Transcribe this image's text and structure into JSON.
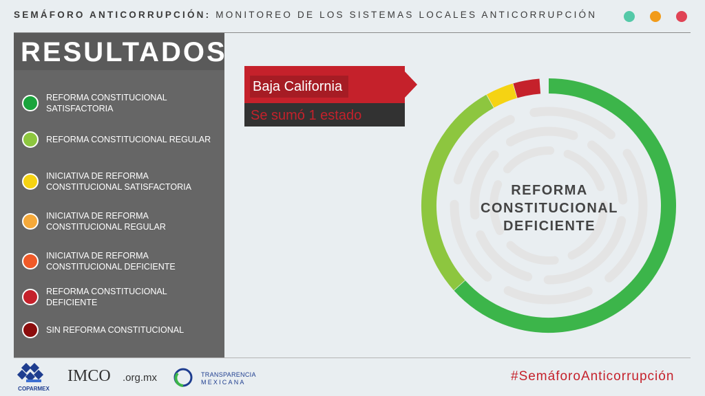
{
  "header": {
    "title_bold": "SEMÁFORO ANTICORRUPCIÓN:",
    "title_rest": "MONITOREO DE LOS SISTEMAS LOCALES ANTICORRUPCIÓN",
    "dot_colors": [
      "#54c9a8",
      "#f19b1a",
      "#e04355"
    ]
  },
  "panel": {
    "title": "RESULTADOS",
    "legend": [
      {
        "label": "REFORMA CONSTITUCIONAL SATISFACTORIA",
        "color": "#1aa43c"
      },
      {
        "label": "REFORMA CONSTITUCIONAL REGULAR",
        "color": "#8dc63f"
      },
      {
        "label": "INICIATIVA DE REFORMA CONSTITUCIONAL SATISFACTORIA",
        "color": "#f5d313"
      },
      {
        "label": "INICIATIVA DE REFORMA CONSTITUCIONAL REGULAR",
        "color": "#f5a93a"
      },
      {
        "label": "INICIATIVA DE REFORMA CONSTITUCIONAL DEFICIENTE",
        "color": "#f05a28"
      },
      {
        "label": "REFORMA CONSTITUCIONAL DEFICIENTE",
        "color": "#c5212b"
      },
      {
        "label": "SIN REFORMA CONSTITUCIONAL",
        "color": "#8b0d0d"
      }
    ]
  },
  "callout": {
    "state": "Baja California",
    "note": "Se sumó 1 estado"
  },
  "donut": {
    "center_label": [
      "REFORMA",
      "CONSTITUCIONAL",
      "DEFICIENTE"
    ],
    "segments": [
      {
        "category": "REFORMA CONSTITUCIONAL SATISFACTORIA",
        "fraction": 0.634,
        "color": "#3cb54a"
      },
      {
        "category": "REFORMA CONSTITUCIONAL REGULAR",
        "fraction": 0.285,
        "color": "#8dc63f"
      },
      {
        "category": "INICIATIVA DE REFORMA CONSTITUCIONAL SATISFACTORIA",
        "fraction": 0.036,
        "color": "#f5d313"
      },
      {
        "category": "REFORMA CONSTITUCIONAL DEFICIENTE",
        "fraction": 0.034,
        "color": "#c5212b"
      }
    ]
  },
  "footer": {
    "coparmex": "COPARMEX",
    "imco": "IMCO",
    "imco_suffix": ".org.mx",
    "tm_line1": "TRANSPARENCIA",
    "tm_line2": "MEXICANA",
    "hashtag": "#SemáforoAnticorrupción"
  }
}
